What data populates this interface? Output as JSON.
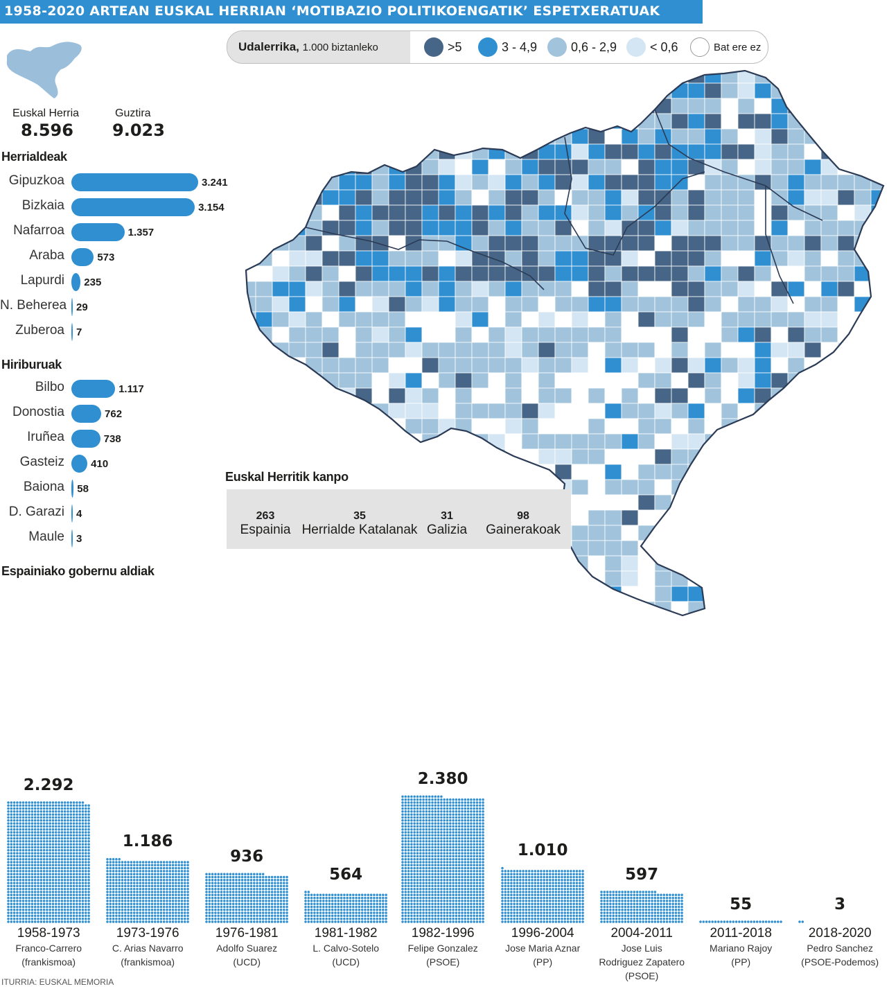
{
  "title": "1958-2020 ARTEAN EUSKAL HERRIAN ‘MOTIBAZIO POLITIKOENGATIK’ ESPETXERATUAK",
  "legend": {
    "label_bold": "Udalerrika,",
    "label_rest": "1.000 biztanleko",
    "items": [
      {
        "label": ">5",
        "color": "#476687"
      },
      {
        "label": "3 - 4,9",
        "color": "#2f8fd1"
      },
      {
        "label": "0,6 - 2,9",
        "color": "#a1c3dc"
      },
      {
        "label": "< 0,6",
        "color": "#d4e6f3"
      },
      {
        "label": "Bat ere ez",
        "color": "#ffffff"
      }
    ]
  },
  "totals": {
    "euskal_herria_label": "Euskal Herria",
    "euskal_herria_value": "8.596",
    "guztira_label": "Guztira",
    "guztira_value": "9.023"
  },
  "map_colors": {
    "boundary": "#2b3a55",
    "outer_stroke": "#2b3a55"
  },
  "outside": {
    "title": "Euskal Herritik kanpo",
    "items": [
      {
        "value": "263",
        "label": "Espainia"
      },
      {
        "value": "35",
        "label": "Herrialde Katalanak"
      },
      {
        "value": "31",
        "label": "Galizia"
      },
      {
        "value": "98",
        "label": "Gainerakoak"
      }
    ]
  },
  "source": "ITURRIA: EUSKAL MEMORIA",
  "chart_data": [
    {
      "type": "bar",
      "orientation": "horizontal",
      "title": "Herrialdeak",
      "categories": [
        "Gipuzkoa",
        "Bizkaia",
        "Nafarroa",
        "Araba",
        "Lapurdi",
        "N. Beherea",
        "Zuberoa"
      ],
      "values": [
        3241,
        3154,
        1357,
        573,
        235,
        29,
        7
      ],
      "value_labels": [
        "3.241",
        "3.154",
        "1.357",
        "573",
        "235",
        "29",
        "7"
      ],
      "color": "#2f8fd1"
    },
    {
      "type": "bar",
      "orientation": "horizontal",
      "title": "Hiriburuak",
      "categories": [
        "Bilbo",
        "Donostia",
        "Iruñea",
        "Gasteiz",
        "Baiona",
        "D. Garazi",
        "Maule"
      ],
      "values": [
        1117,
        762,
        738,
        410,
        58,
        4,
        3
      ],
      "value_labels": [
        "1.117",
        "762",
        "738",
        "410",
        "58",
        "4",
        "3"
      ],
      "color": "#2f8fd1"
    },
    {
      "type": "bar",
      "orientation": "vertical",
      "style": "dot-matrix",
      "title": "Espainiako gobernu aldiak",
      "categories": [
        "1958-1973",
        "1973-1976",
        "1976-1981",
        "1981-1982",
        "1982-1996",
        "1996-2004",
        "2004-2011",
        "2011-2018",
        "2018-2020"
      ],
      "governments": [
        [
          "Franco-Carrero",
          "(frankismoa)"
        ],
        [
          "C. Arias Navarro",
          "(frankismoa)"
        ],
        [
          "Adolfo Suarez",
          "(UCD)"
        ],
        [
          "L. Calvo-Sotelo",
          "(UCD)"
        ],
        [
          "Felipe Gonzalez",
          "(PSOE)"
        ],
        [
          "Jose Maria Aznar",
          "(PP)"
        ],
        [
          "Jose Luis",
          "Rodriguez Zapatero",
          "(PSOE)"
        ],
        [
          "Mariano Rajoy",
          "(PP)"
        ],
        [
          "Pedro Sanchez",
          "(PSOE-Podemos)"
        ]
      ],
      "values": [
        2292,
        1186,
        936,
        564,
        2380,
        1010,
        597,
        55,
        3
      ],
      "value_labels": [
        "2.292",
        "1.186",
        "936",
        "564",
        "2.380",
        "1.010",
        "597",
        "55",
        "3"
      ],
      "color": "#2f8fd1"
    }
  ]
}
